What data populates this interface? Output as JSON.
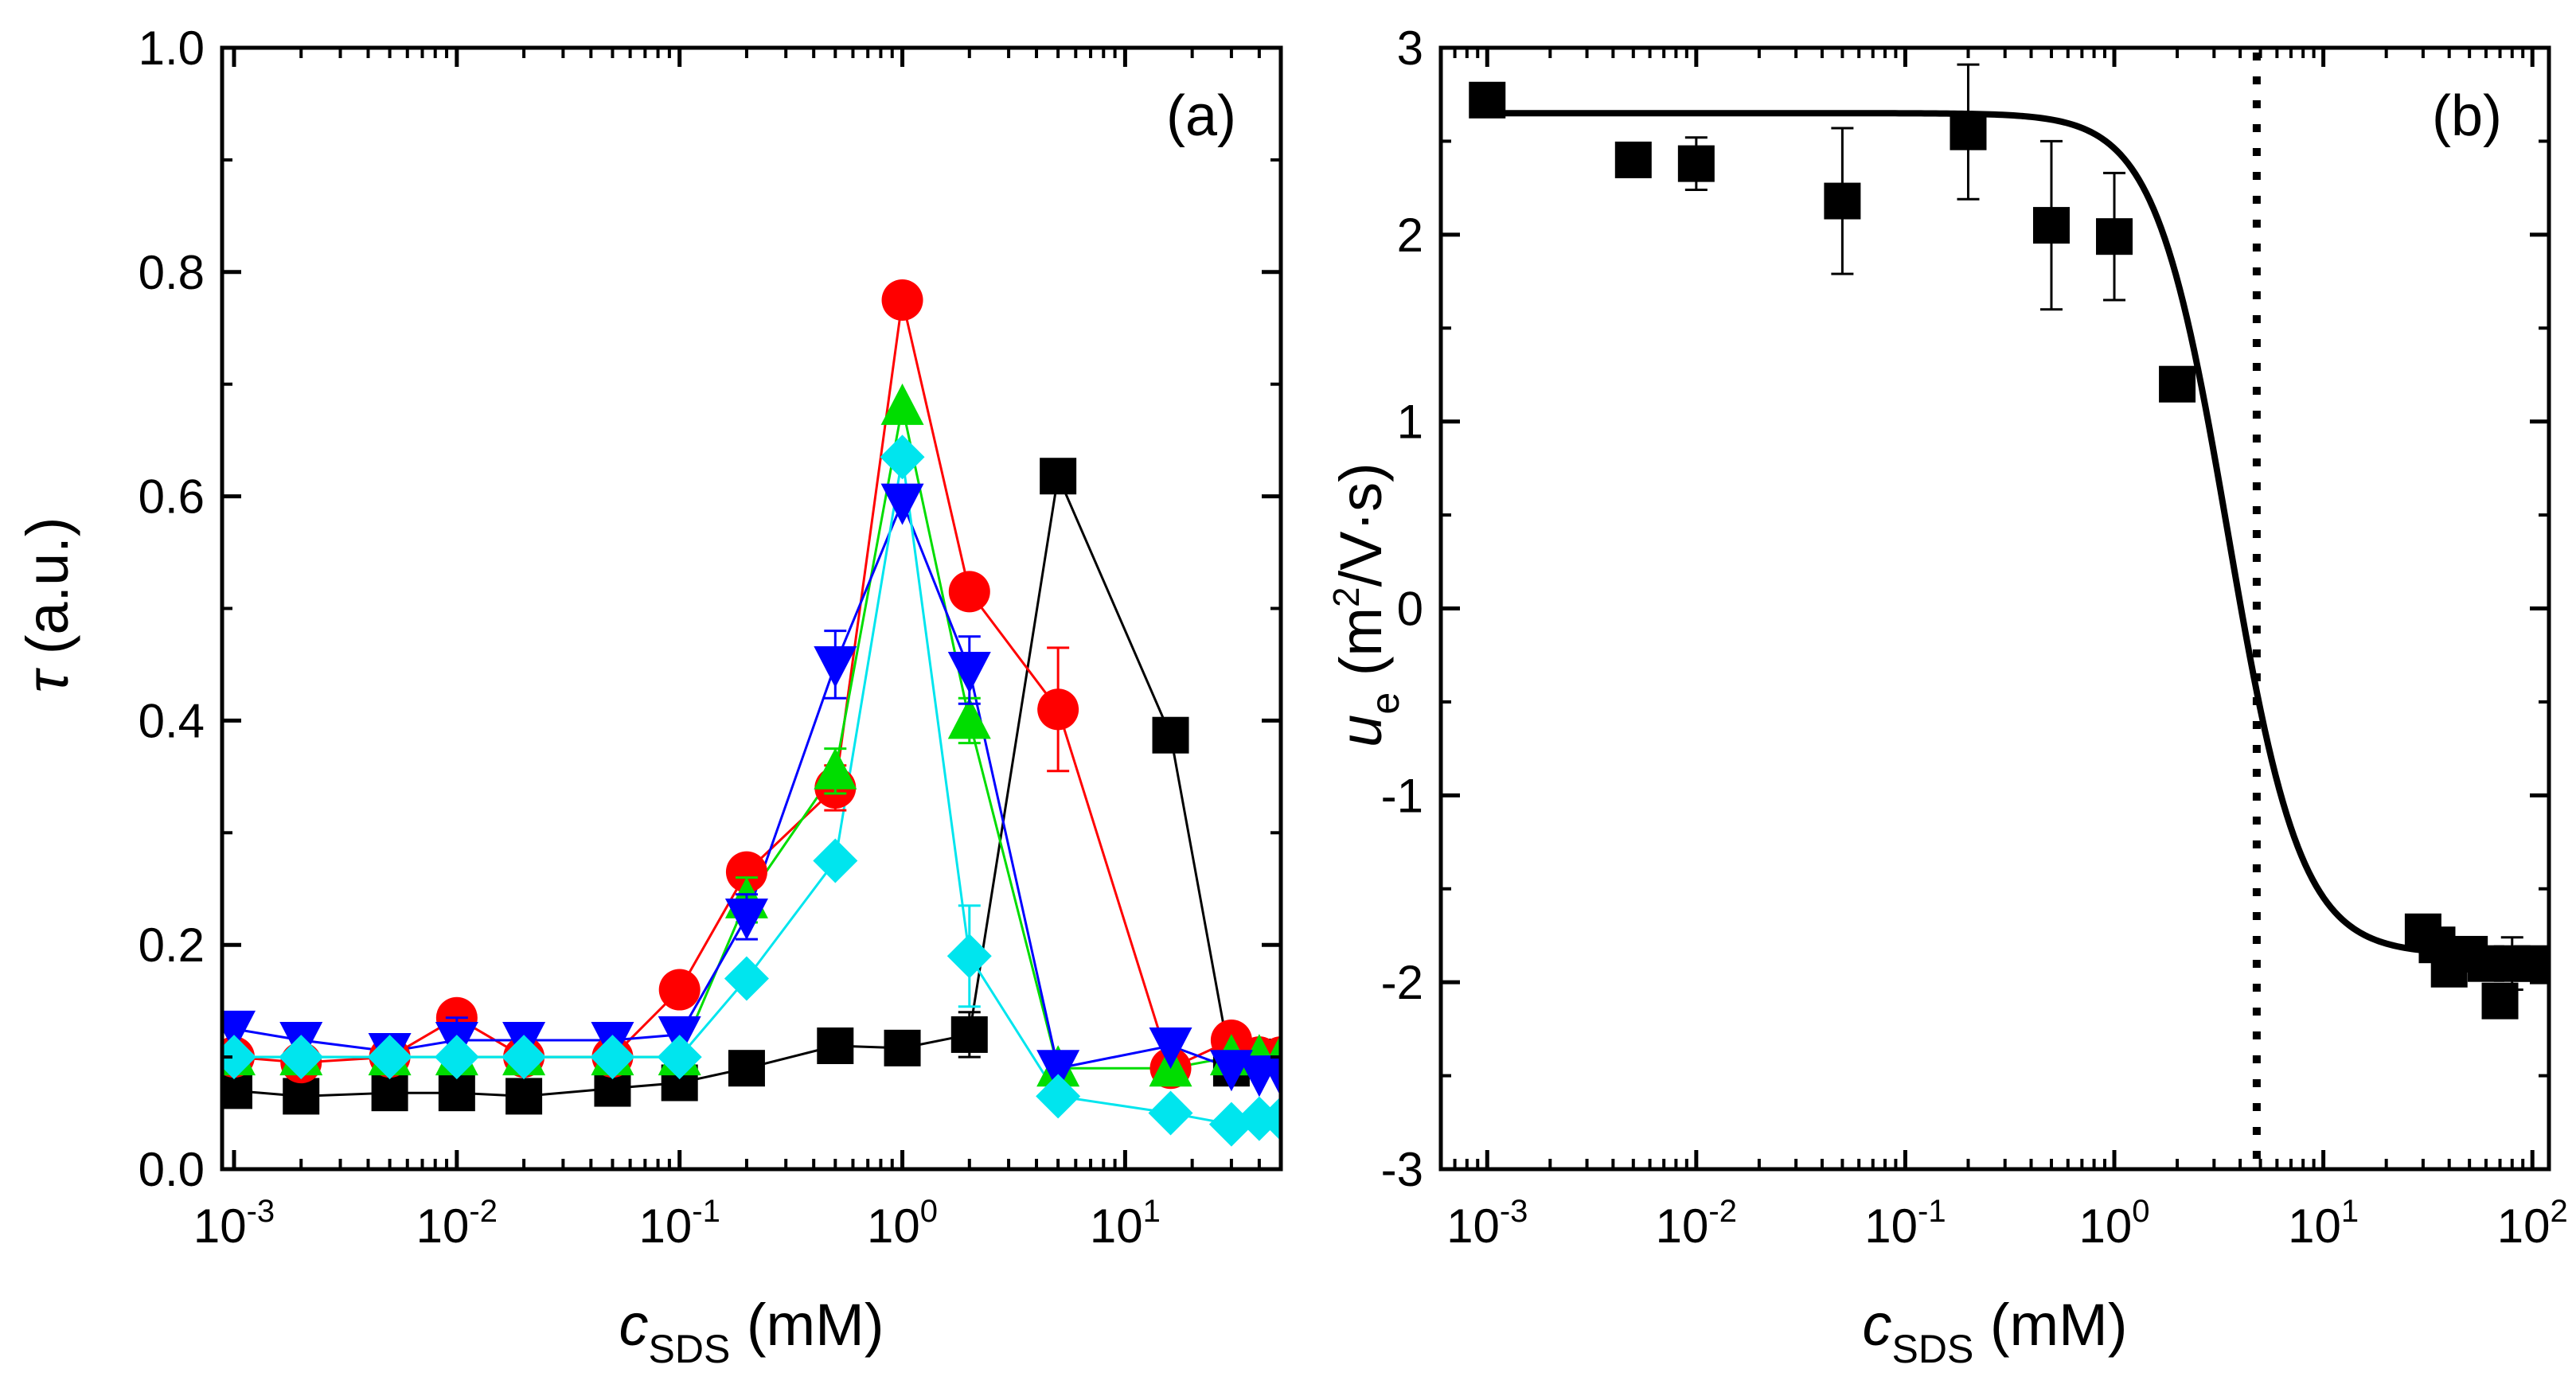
{
  "chart_data": [
    {
      "panel_label": "(a)",
      "type": "line",
      "xscale": "log",
      "xlim": [
        0.001,
        50
      ],
      "ylim": [
        0,
        1.0
      ],
      "xticks": [
        {
          "value": 0.001,
          "base": "10",
          "exp": "-3"
        },
        {
          "value": 0.01,
          "base": "10",
          "exp": "-2"
        },
        {
          "value": 0.1,
          "base": "10",
          "exp": "-1"
        },
        {
          "value": 1,
          "base": "10",
          "exp": "0"
        },
        {
          "value": 10,
          "base": "10",
          "exp": "1"
        }
      ],
      "yticks": [
        {
          "value": 0.0,
          "label": "0.0"
        },
        {
          "value": 0.2,
          "label": "0.2"
        },
        {
          "value": 0.4,
          "label": "0.4"
        },
        {
          "value": 0.6,
          "label": "0.6"
        },
        {
          "value": 0.8,
          "label": "0.8"
        },
        {
          "value": 1.0,
          "label": "1.0"
        }
      ],
      "ylabel": {
        "symbol": "τ",
        "rest": " (a.u.)"
      },
      "xlabel": {
        "symbol": "c",
        "sub": "SDS",
        "rest": " (mM)"
      },
      "series": [
        {
          "marker": "square",
          "color": "#000000",
          "line": true,
          "x": [
            0.001,
            0.002,
            0.005,
            0.01,
            0.02,
            0.05,
            0.1,
            0.2,
            0.5,
            1,
            2,
            5,
            16,
            30,
            40,
            50
          ],
          "y": [
            0.07,
            0.065,
            0.068,
            0.068,
            0.065,
            0.072,
            0.077,
            0.09,
            0.11,
            0.108,
            0.12,
            0.618,
            0.387,
            0.09,
            0.1,
            0.1
          ],
          "err": [
            0,
            0,
            0,
            0,
            0,
            0,
            0,
            0,
            0,
            0,
            0.02,
            0,
            0,
            0,
            0,
            0
          ]
        },
        {
          "marker": "circle",
          "color": "#ff0000",
          "line": true,
          "x": [
            0.001,
            0.002,
            0.005,
            0.01,
            0.02,
            0.05,
            0.1,
            0.2,
            0.5,
            1,
            2,
            5,
            16,
            30,
            40,
            50
          ],
          "y": [
            0.1,
            0.095,
            0.1,
            0.135,
            0.1,
            0.1,
            0.16,
            0.265,
            0.34,
            0.775,
            0.515,
            0.41,
            0.09,
            0.115,
            0.1,
            0.1
          ],
          "err": [
            0,
            0,
            0,
            0,
            0,
            0,
            0,
            0,
            0.02,
            0,
            0,
            0.055,
            0,
            0,
            0,
            0
          ]
        },
        {
          "marker": "triangle-up",
          "color": "#00dd00",
          "line": true,
          "x": [
            0.001,
            0.002,
            0.005,
            0.01,
            0.02,
            0.05,
            0.1,
            0.2,
            0.5,
            1,
            2,
            5,
            16,
            30,
            40,
            50
          ],
          "y": [
            0.1,
            0.1,
            0.1,
            0.1,
            0.1,
            0.1,
            0.1,
            0.24,
            0.355,
            0.68,
            0.4,
            0.09,
            0.09,
            0.1,
            0.1,
            0.1
          ],
          "err": [
            0,
            0,
            0,
            0,
            0,
            0,
            0,
            0.02,
            0.02,
            0,
            0.02,
            0,
            0,
            0,
            0,
            0
          ]
        },
        {
          "marker": "triangle-down",
          "color": "#0000ff",
          "line": true,
          "x": [
            0.001,
            0.002,
            0.005,
            0.01,
            0.02,
            0.05,
            0.1,
            0.2,
            0.5,
            1,
            2,
            5,
            16,
            30,
            40,
            50
          ],
          "y": [
            0.125,
            0.115,
            0.105,
            0.115,
            0.115,
            0.115,
            0.12,
            0.225,
            0.45,
            0.595,
            0.445,
            0.09,
            0.11,
            0.09,
            0.085,
            0.085
          ],
          "err": [
            0,
            0.015,
            0,
            0.02,
            0.015,
            0,
            0,
            0.02,
            0.03,
            0,
            0.03,
            0,
            0,
            0,
            0,
            0
          ]
        },
        {
          "marker": "diamond",
          "color": "#00e5ee",
          "line": true,
          "x": [
            0.001,
            0.002,
            0.005,
            0.01,
            0.02,
            0.05,
            0.1,
            0.2,
            0.5,
            1,
            2,
            5,
            16,
            30,
            40,
            50
          ],
          "y": [
            0.1,
            0.1,
            0.1,
            0.1,
            0.1,
            0.1,
            0.1,
            0.17,
            0.275,
            0.635,
            0.19,
            0.065,
            0.05,
            0.04,
            0.045,
            0.045
          ],
          "err": [
            0,
            0,
            0,
            0,
            0,
            0,
            0,
            0,
            0,
            0,
            0.045,
            0,
            0,
            0,
            0,
            0
          ]
        }
      ]
    },
    {
      "panel_label": "(b)",
      "type": "scatter",
      "xscale": "log",
      "xlim": [
        0.0006,
        120
      ],
      "ylim": [
        -3,
        3
      ],
      "xticks": [
        {
          "value": 0.001,
          "base": "10",
          "exp": "-3"
        },
        {
          "value": 0.01,
          "base": "10",
          "exp": "-2"
        },
        {
          "value": 0.1,
          "base": "10",
          "exp": "-1"
        },
        {
          "value": 1,
          "base": "10",
          "exp": "0"
        },
        {
          "value": 10,
          "base": "10",
          "exp": "1"
        },
        {
          "value": 100,
          "base": "10",
          "exp": "2"
        }
      ],
      "yticks": [
        {
          "value": 3,
          "label": "3"
        },
        {
          "value": 2,
          "label": "2"
        },
        {
          "value": 1,
          "label": "1"
        },
        {
          "value": 0,
          "label": "0"
        },
        {
          "value": -1,
          "label": "-1"
        },
        {
          "value": -2,
          "label": "-2"
        },
        {
          "value": -3,
          "label": "-3"
        }
      ],
      "ylabel": {
        "symbol": "u",
        "sub": "e",
        "pre": " (m",
        "sup": "2",
        "post": "/V·s)"
      },
      "xlabel": {
        "symbol": "c",
        "sub": "SDS",
        "rest": " (mM)"
      },
      "points": {
        "x": [
          0.001,
          0.005,
          0.01,
          0.05,
          0.2,
          0.5,
          1,
          2,
          30,
          35,
          40,
          50,
          60,
          70,
          80,
          100
        ],
        "y": [
          2.72,
          2.4,
          2.38,
          2.18,
          2.55,
          2.05,
          1.99,
          1.2,
          -1.73,
          -1.8,
          -1.93,
          -1.85,
          -1.9,
          -2.1,
          -1.9,
          -1.9
        ],
        "err": [
          0,
          0,
          0.14,
          0.39,
          0.36,
          0.45,
          0.34,
          0,
          0,
          0,
          0,
          0,
          0,
          0,
          0.14,
          0
        ]
      },
      "fit_curve": {
        "model": "sigmoid-in-log10(x)",
        "top": 2.65,
        "bottom": -1.85,
        "x_half": 3.5,
        "slope": 2.5
      },
      "vline": {
        "x": 4.8,
        "style": "dotted"
      }
    }
  ]
}
